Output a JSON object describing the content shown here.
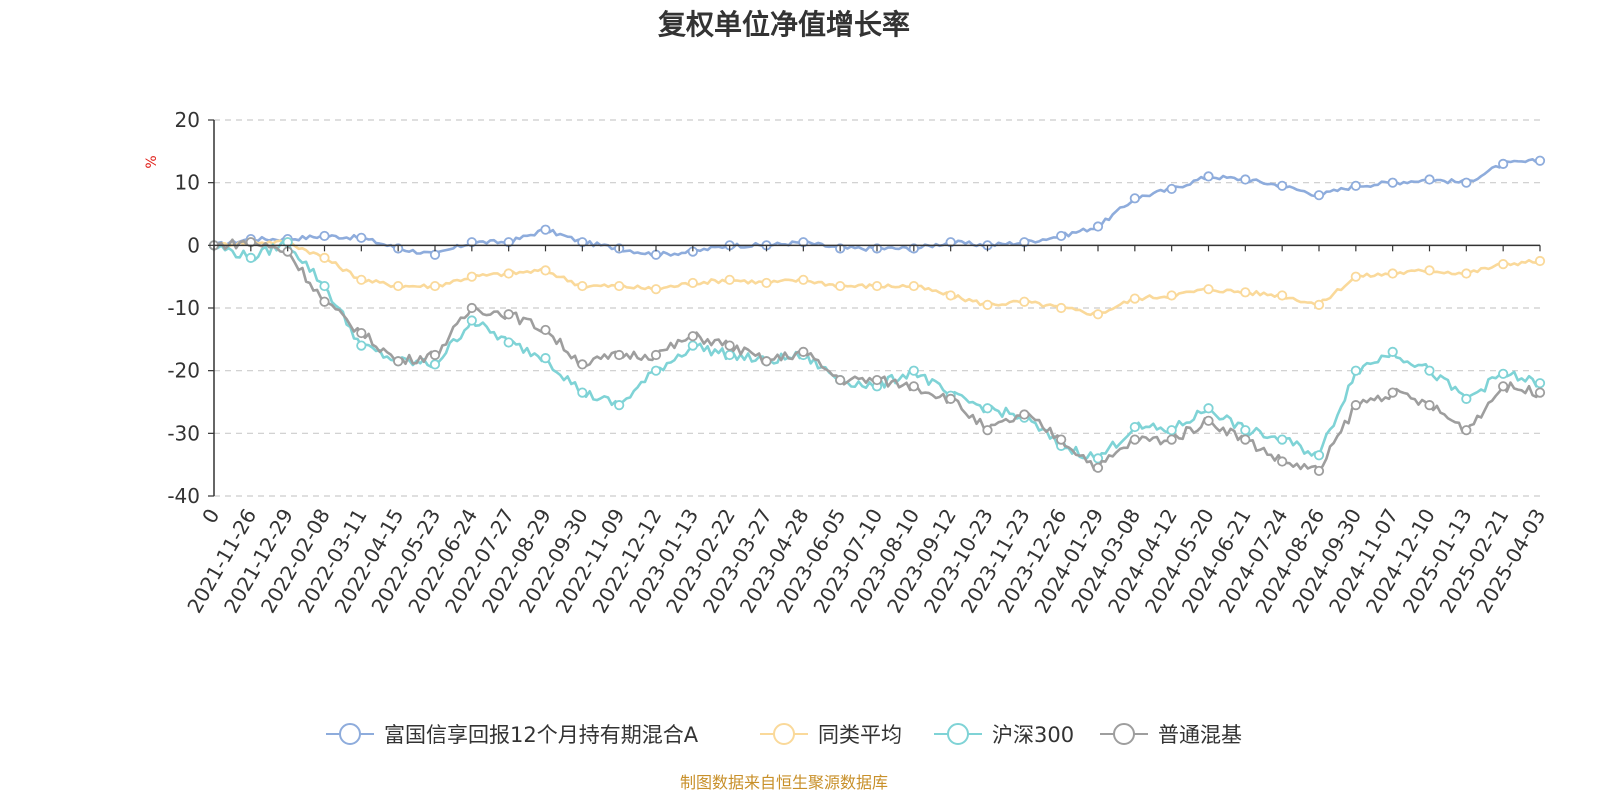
{
  "colors": {
    "fund": "#8eacdc",
    "peer": "#fad99a",
    "hs300": "#7fd3d6",
    "mixed": "#9e9e9e",
    "grid": "#cccccc",
    "axis": "#333333",
    "source": "#c8902a"
  },
  "chart_data": {
    "type": "line",
    "title": "复权单位净值增长率",
    "ylabel": "%",
    "ylim": [
      -40,
      20
    ],
    "yticks": [
      -40,
      -30,
      -20,
      -10,
      0,
      10,
      20
    ],
    "ytick_labels": [
      "-40",
      "-30",
      "-20",
      "-10",
      "0",
      "10",
      "20"
    ],
    "grid": true,
    "legend_position": "bottom",
    "categories": [
      "0",
      "2021-11-26",
      "2021-12-29",
      "2022-02-08",
      "2022-03-11",
      "2022-04-15",
      "2022-05-23",
      "2022-06-24",
      "2022-07-27",
      "2022-08-29",
      "2022-09-30",
      "2022-11-09",
      "2022-12-12",
      "2023-01-13",
      "2023-02-22",
      "2023-03-27",
      "2023-04-28",
      "2023-06-05",
      "2023-07-10",
      "2023-08-10",
      "2023-09-12",
      "2023-10-23",
      "2023-11-23",
      "2023-12-26",
      "2024-01-29",
      "2024-03-08",
      "2024-04-12",
      "2024-05-20",
      "2024-06-21",
      "2024-07-24",
      "2024-08-26",
      "2024-09-30",
      "2024-11-07",
      "2024-12-10",
      "2025-01-13",
      "2025-02-21",
      "2025-04-03"
    ],
    "series": [
      {
        "name": "富国信享回报12个月持有期混合A",
        "key": "fund",
        "values": [
          0,
          1.0,
          1.0,
          1.5,
          1.2,
          -0.5,
          -1.5,
          0.5,
          0.5,
          2.5,
          0.5,
          -0.5,
          -1.5,
          -1.0,
          0.0,
          0.0,
          0.5,
          -0.5,
          -0.5,
          -0.5,
          0.5,
          0.0,
          0.5,
          1.5,
          3.0,
          7.5,
          9.0,
          11.0,
          10.5,
          9.5,
          8.0,
          9.5,
          10.0,
          10.5,
          10.0,
          13.0,
          13.5
        ]
      },
      {
        "name": "同类平均",
        "key": "peer",
        "values": [
          0,
          0.5,
          0.5,
          -2.0,
          -5.5,
          -6.5,
          -6.5,
          -5.0,
          -4.5,
          -4.0,
          -6.5,
          -6.5,
          -7.0,
          -6.0,
          -5.5,
          -6.0,
          -5.5,
          -6.5,
          -6.5,
          -6.5,
          -8.0,
          -9.5,
          -9.0,
          -10.0,
          -11.0,
          -8.5,
          -8.0,
          -7.0,
          -7.5,
          -8.0,
          -9.5,
          -5.0,
          -4.5,
          -4.0,
          -4.5,
          -3.0,
          -2.5
        ]
      },
      {
        "name": "沪深300",
        "key": "hs300",
        "values": [
          0,
          -2.0,
          0.5,
          -6.5,
          -16.0,
          -18.5,
          -19.0,
          -12.0,
          -15.5,
          -18.0,
          -23.5,
          -25.5,
          -20.0,
          -16.0,
          -17.5,
          -18.5,
          -17.5,
          -21.5,
          -22.5,
          -20.0,
          -24.0,
          -26.0,
          -27.5,
          -32.0,
          -34.0,
          -29.0,
          -29.5,
          -26.0,
          -29.5,
          -31.0,
          -33.5,
          -20.0,
          -17.0,
          -20.0,
          -24.5,
          -20.5,
          -22.0
        ]
      },
      {
        "name": "普通混基",
        "key": "mixed",
        "values": [
          0,
          0.5,
          -1.0,
          -9.0,
          -14.0,
          -18.5,
          -17.5,
          -10.0,
          -11.0,
          -13.5,
          -19.0,
          -17.5,
          -17.5,
          -14.5,
          -16.0,
          -18.5,
          -17.0,
          -21.5,
          -21.5,
          -22.5,
          -24.5,
          -29.5,
          -27.0,
          -31.0,
          -35.5,
          -31.0,
          -31.0,
          -28.0,
          -31.0,
          -34.5,
          -36.0,
          -25.5,
          -23.5,
          -25.5,
          -29.5,
          -22.5,
          -23.5
        ]
      }
    ],
    "source_note": "制图数据来自恒生聚源数据库"
  }
}
